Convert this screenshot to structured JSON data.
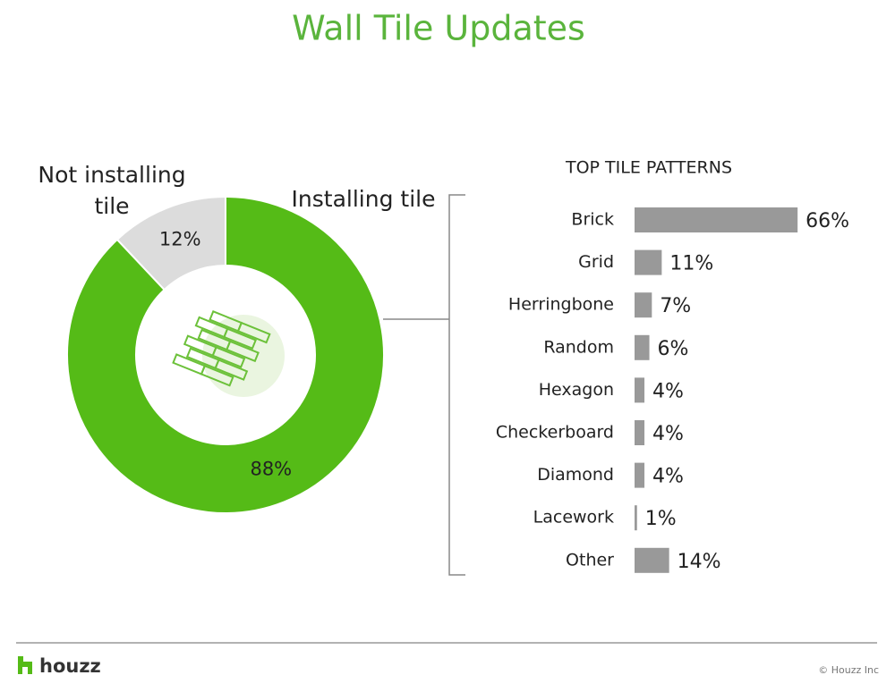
{
  "title": "Wall Tile Updates",
  "footer": {
    "brand": "houzz",
    "copyright": "© Houzz Inc"
  },
  "chart_data": [
    {
      "type": "pie",
      "categories": [
        "Not installing tile",
        "Installing tile"
      ],
      "values": [
        12,
        88
      ],
      "value_labels": [
        "12%",
        "88%"
      ],
      "colors": [
        "#dcdcdc",
        "#55bb17"
      ]
    },
    {
      "type": "bar",
      "title": "TOP TILE PATTERNS",
      "categories": [
        "Brick",
        "Grid",
        "Herringbone",
        "Random",
        "Hexagon",
        "Checkerboard",
        "Diamond",
        "Lacework",
        "Other"
      ],
      "values": [
        66,
        11,
        7,
        6,
        4,
        4,
        4,
        1,
        14
      ],
      "value_labels": [
        "66%",
        "11%",
        "7%",
        "6%",
        "4%",
        "4%",
        "4%",
        "1%",
        "14%"
      ],
      "color": "#999999"
    }
  ]
}
